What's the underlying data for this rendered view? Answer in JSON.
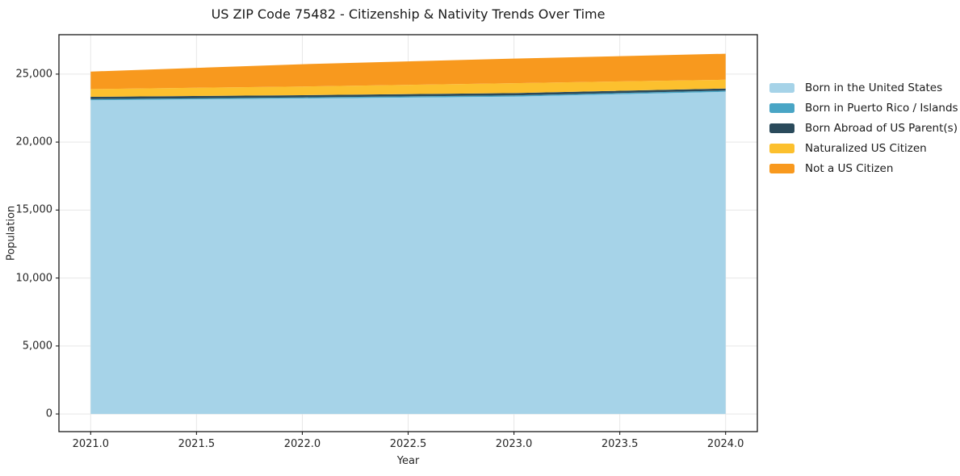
{
  "title": "US ZIP Code 75482 - Citizenship & Nativity Trends Over Time",
  "chart_data": {
    "type": "area",
    "stacked": true,
    "title": "US ZIP Code 75482 - Citizenship & Nativity Trends Over Time",
    "xlabel": "Year",
    "ylabel": "Population",
    "x": [
      2021,
      2022,
      2023,
      2024
    ],
    "series": [
      {
        "name": "Born in the United States",
        "color": "#a6d3e8",
        "values": [
          23080,
          23210,
          23350,
          23700
        ]
      },
      {
        "name": "Born in Puerto Rico / Islands",
        "color": "#49a5c5",
        "values": [
          80,
          80,
          85,
          90
        ]
      },
      {
        "name": "Born Abroad of US Parent(s)",
        "color": "#2a4a5b",
        "values": [
          170,
          160,
          170,
          150
        ]
      },
      {
        "name": "Naturalized US Citizen",
        "color": "#fcc02e",
        "values": [
          570,
          640,
          730,
          650
        ]
      },
      {
        "name": "Not a US Citizen",
        "color": "#f8991e",
        "values": [
          1290,
          1640,
          1810,
          1910
        ]
      }
    ],
    "xlim": [
      2020.85,
      2024.15
    ],
    "ylim": [
      -1300,
      27900
    ],
    "xticks": [
      2021.0,
      2021.5,
      2022.0,
      2022.5,
      2023.0,
      2023.5,
      2024.0
    ],
    "xtick_labels": [
      "2021.0",
      "2021.5",
      "2022.0",
      "2022.5",
      "2023.0",
      "2023.5",
      "2024.0"
    ],
    "yticks": [
      0,
      5000,
      10000,
      15000,
      20000,
      25000
    ],
    "ytick_labels": [
      "0",
      "5,000",
      "10,000",
      "15,000",
      "20,000",
      "25,000"
    ],
    "grid": true,
    "grid_color": "#e7e7e7",
    "spine_color": "#1a1a1a",
    "legend_position": "right of axes, no frame"
  }
}
